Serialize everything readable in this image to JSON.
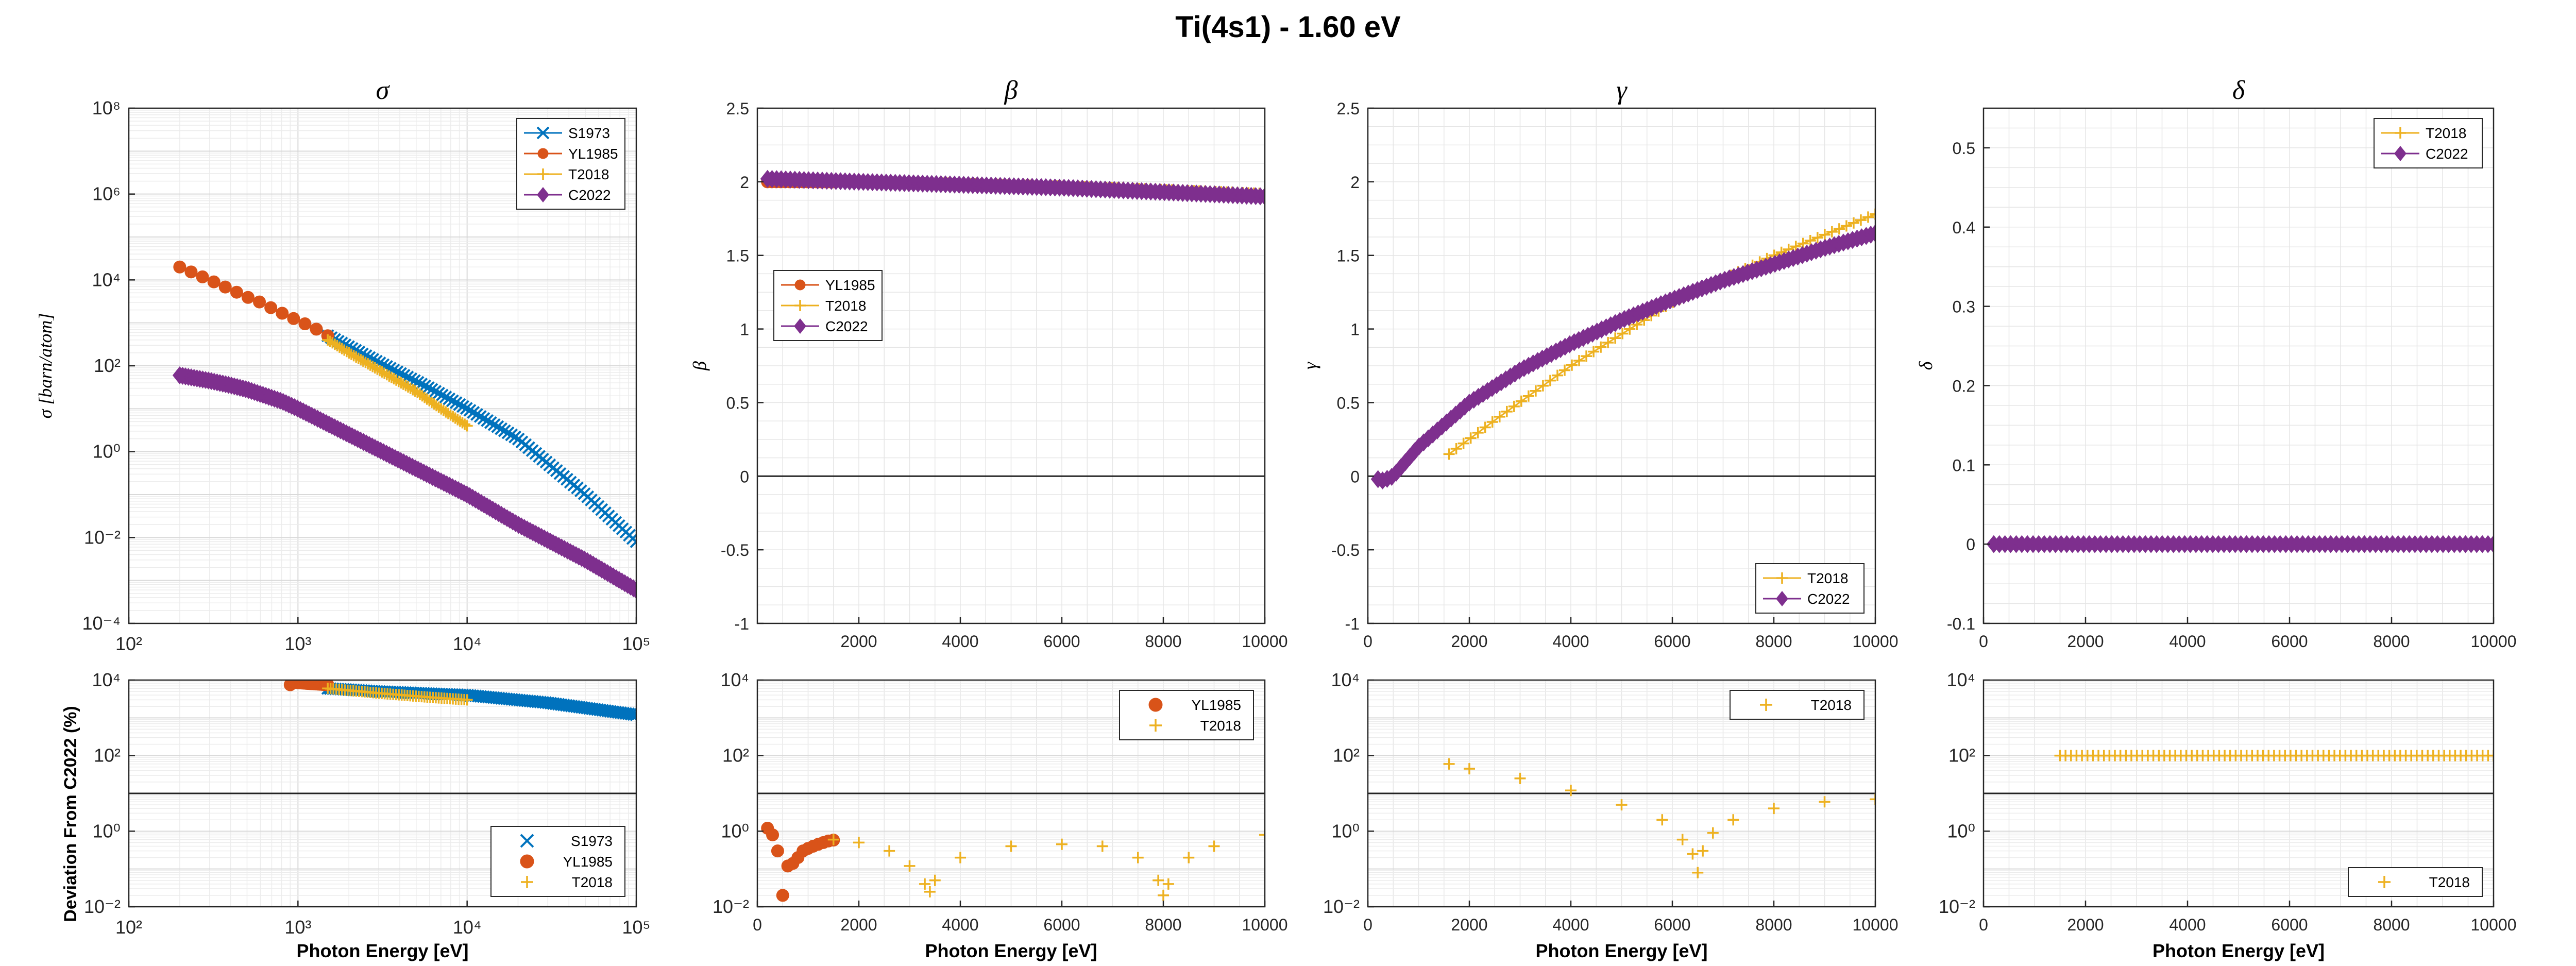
{
  "figure": {
    "title": "Ti(4s1) - 1.60 eV",
    "xlabel": "Photon Energy [eV]",
    "ylabel_bottom": "Deviation From C2022 (%)"
  },
  "colors": {
    "S1973": "#0072BD",
    "YL1985": "#D95319",
    "T2018": "#EDB120",
    "C2022": "#7E2F8E"
  },
  "chart_data": [
    {
      "id": "sigma",
      "type": "line",
      "title": "σ",
      "ylabel": "σ [barn/atom]",
      "xscale": "log",
      "yscale": "log",
      "xlim": [
        100,
        100000
      ],
      "ylim": [
        0.0001,
        100000000
      ],
      "xticks": [
        100,
        1000,
        10000,
        100000
      ],
      "xtick_labels": [
        "10²",
        "10³",
        "10⁴",
        "10⁵"
      ],
      "yticks": [
        0.0001,
        0.01,
        1,
        100,
        10000,
        1000000,
        100000000
      ],
      "ytick_labels": [
        "10⁻⁴",
        "10⁻²",
        "10⁰",
        "10²",
        "10⁴",
        "10⁶",
        "10⁸"
      ],
      "grid": true,
      "legend": "top-right",
      "series": [
        {
          "name": "S1973",
          "marker": "x",
          "x": [
            1500,
            3000,
            6000,
            10000,
            20000,
            50000,
            100000
          ],
          "y": [
            500,
            120,
            30,
            10,
            2,
            0.1,
            0.008
          ]
        },
        {
          "name": "YL1985",
          "marker": "o",
          "x": [
            200,
            300,
            400,
            500,
            600,
            700,
            800,
            900,
            1000,
            1100,
            1200,
            1300,
            1400,
            1500
          ],
          "y": [
            20000,
            10000,
            6000,
            4000,
            3000,
            2200,
            1700,
            1400,
            1100,
            950,
            800,
            700,
            600,
            500
          ]
        },
        {
          "name": "T2018",
          "marker": "+",
          "x": [
            1500,
            2000,
            3000,
            5000,
            7000,
            10000
          ],
          "y": [
            400,
            200,
            80,
            25,
            10,
            4
          ]
        },
        {
          "name": "C2022",
          "marker": "d",
          "x": [
            200,
            300,
            400,
            500,
            600,
            800,
            1000,
            2000,
            5000,
            10000,
            20000,
            50000,
            100000
          ],
          "y": [
            60,
            45,
            35,
            28,
            22,
            15,
            10,
            2.5,
            0.4,
            0.1,
            0.02,
            0.003,
            0.0006
          ]
        }
      ]
    },
    {
      "id": "beta",
      "type": "line",
      "title": "β",
      "ylabel": "β",
      "xscale": "linear",
      "yscale": "linear",
      "xlim": [
        0,
        10000
      ],
      "ylim": [
        -1,
        2.5
      ],
      "xticks": [
        2000,
        4000,
        6000,
        8000,
        10000
      ],
      "xtick_labels": [
        "2000",
        "4000",
        "6000",
        "8000",
        "10000"
      ],
      "yticks": [
        -1,
        -0.5,
        0,
        0.5,
        1,
        1.5,
        2,
        2.5
      ],
      "ytick_labels": [
        "-1",
        "-0.5",
        "0",
        "0.5",
        "1",
        "1.5",
        "2",
        "2.5"
      ],
      "zero_line": 0,
      "grid": true,
      "legend": "middle-left",
      "series": [
        {
          "name": "YL1985",
          "marker": "o",
          "x": [
            200,
            400,
            600,
            800,
            1000,
            1200,
            1500
          ],
          "y": [
            2.0,
            2.0,
            2.0,
            2.0,
            2.0,
            2.0,
            2.0
          ]
        },
        {
          "name": "T2018",
          "marker": "+",
          "x": [
            1500,
            4000,
            7000,
            10000
          ],
          "y": [
            2.0,
            1.99,
            1.96,
            1.92
          ]
        },
        {
          "name": "C2022",
          "marker": "d",
          "x": [
            200,
            2000,
            4000,
            6000,
            8000,
            10000
          ],
          "y": [
            2.02,
            2.0,
            1.98,
            1.96,
            1.93,
            1.9
          ]
        }
      ]
    },
    {
      "id": "gamma",
      "type": "line",
      "title": "γ",
      "ylabel": "γ",
      "xscale": "linear",
      "yscale": "linear",
      "xlim": [
        0,
        10000
      ],
      "ylim": [
        -1,
        2.5
      ],
      "xticks": [
        0,
        2000,
        4000,
        6000,
        8000,
        10000
      ],
      "xtick_labels": [
        "0",
        "2000",
        "4000",
        "6000",
        "8000",
        "10000"
      ],
      "yticks": [
        -1,
        -0.5,
        0,
        0.5,
        1,
        1.5,
        2,
        2.5
      ],
      "ytick_labels": [
        "-1",
        "-0.5",
        "0",
        "0.5",
        "1",
        "1.5",
        "2",
        "2.5"
      ],
      "zero_line": 0,
      "grid": true,
      "legend": "bottom-right",
      "series": [
        {
          "name": "T2018",
          "marker": "+",
          "x": [
            1600,
            2500,
            4000,
            6000,
            8000,
            10000
          ],
          "y": [
            0.15,
            0.38,
            0.75,
            1.18,
            1.5,
            1.78
          ]
        },
        {
          "name": "C2022",
          "marker": "d",
          "x": [
            200,
            300,
            500,
            1000,
            2000,
            3000,
            4000,
            5000,
            6000,
            7000,
            8000,
            9000,
            10000
          ],
          "y": [
            -0.02,
            -0.03,
            0.0,
            0.2,
            0.5,
            0.72,
            0.9,
            1.06,
            1.2,
            1.33,
            1.44,
            1.55,
            1.65
          ]
        }
      ]
    },
    {
      "id": "delta",
      "type": "line",
      "title": "δ",
      "ylabel": "δ",
      "xscale": "linear",
      "yscale": "linear",
      "xlim": [
        0,
        10000
      ],
      "ylim": [
        -0.1,
        0.55
      ],
      "xticks": [
        0,
        2000,
        4000,
        6000,
        8000,
        10000
      ],
      "xtick_labels": [
        "0",
        "2000",
        "4000",
        "6000",
        "8000",
        "10000"
      ],
      "yticks": [
        -0.1,
        0,
        0.1,
        0.2,
        0.3,
        0.4,
        0.5
      ],
      "ytick_labels": [
        "-0.1",
        "0",
        "0.1",
        "0.2",
        "0.3",
        "0.4",
        "0.5"
      ],
      "grid": true,
      "legend": "top-right",
      "series": [
        {
          "name": "T2018",
          "marker": "+",
          "x": [
            1500,
            10000
          ],
          "y": [
            0,
            0
          ]
        },
        {
          "name": "C2022",
          "marker": "d",
          "x": [
            200,
            10000
          ],
          "y": [
            0,
            0
          ]
        }
      ]
    },
    {
      "id": "dev-sigma",
      "type": "scatter",
      "xscale": "log",
      "yscale": "log",
      "xlim": [
        100,
        100000
      ],
      "ylim": [
        0.01,
        10000
      ],
      "xticks": [
        100,
        1000,
        10000,
        100000
      ],
      "xtick_labels": [
        "10²",
        "10³",
        "10⁴",
        "10⁵"
      ],
      "yticks": [
        0.01,
        1,
        100,
        10000
      ],
      "ytick_labels": [
        "10⁻²",
        "10⁰",
        "10²",
        "10⁴"
      ],
      "ref_line": 10,
      "grid": true,
      "legend": "bottom-right",
      "series": [
        {
          "name": "S1973",
          "marker": "x",
          "x": [
            1500,
            3000,
            10000,
            30000,
            100000
          ],
          "y": [
            6000,
            5000,
            4000,
            2500,
            1200
          ]
        },
        {
          "name": "YL1985",
          "marker": "o",
          "x": [
            900,
            1000,
            1200,
            1500
          ],
          "y": [
            9000,
            8500,
            8000,
            7500
          ]
        },
        {
          "name": "T2018",
          "marker": "+",
          "x": [
            1500,
            3000,
            6000,
            10000
          ],
          "y": [
            6000,
            4500,
            3500,
            3000
          ]
        }
      ]
    },
    {
      "id": "dev-beta",
      "type": "scatter",
      "xscale": "linear",
      "yscale": "log",
      "xlim": [
        0,
        10000
      ],
      "ylim": [
        0.01,
        10000
      ],
      "xticks": [
        0,
        2000,
        4000,
        6000,
        8000,
        10000
      ],
      "xtick_labels": [
        "0",
        "2000",
        "4000",
        "6000",
        "8000",
        "10000"
      ],
      "yticks": [
        0.01,
        1,
        100,
        10000
      ],
      "ytick_labels": [
        "10⁻²",
        "10⁰",
        "10²",
        "10⁴"
      ],
      "ref_line": 10,
      "grid": true,
      "legend": "top-right",
      "series": [
        {
          "name": "YL1985",
          "marker": "o",
          "x": [
            200,
            300,
            400,
            500,
            600,
            700,
            800,
            900,
            1000,
            1100,
            1200,
            1300,
            1400,
            1500
          ],
          "y": [
            1.2,
            0.8,
            0.3,
            0.02,
            0.12,
            0.14,
            0.2,
            0.3,
            0.35,
            0.4,
            0.45,
            0.5,
            0.55,
            0.58
          ]
        },
        {
          "name": "T2018",
          "marker": "+",
          "x": [
            1500,
            2000,
            2600,
            3000,
            3300,
            3400,
            3500,
            4000,
            5000,
            6000,
            6800,
            7500,
            7900,
            8000,
            8100,
            8500,
            9000,
            10000
          ],
          "y": [
            0.6,
            0.5,
            0.3,
            0.12,
            0.04,
            0.025,
            0.05,
            0.2,
            0.4,
            0.45,
            0.4,
            0.2,
            0.05,
            0.02,
            0.04,
            0.2,
            0.4,
            0.8
          ]
        }
      ]
    },
    {
      "id": "dev-gamma",
      "type": "scatter",
      "xscale": "linear",
      "yscale": "log",
      "xlim": [
        0,
        10000
      ],
      "ylim": [
        0.01,
        10000
      ],
      "xticks": [
        0,
        2000,
        4000,
        6000,
        8000,
        10000
      ],
      "xtick_labels": [
        "0",
        "2000",
        "4000",
        "6000",
        "8000",
        "10000"
      ],
      "yticks": [
        0.01,
        1,
        100,
        10000
      ],
      "ytick_labels": [
        "10⁻²",
        "10⁰",
        "10²",
        "10⁴"
      ],
      "ref_line": 10,
      "grid": true,
      "legend": "top-right",
      "series": [
        {
          "name": "T2018",
          "marker": "+",
          "x": [
            1600,
            2000,
            3000,
            4000,
            5000,
            5800,
            6200,
            6400,
            6500,
            6600,
            6800,
            7200,
            8000,
            9000,
            10000
          ],
          "y": [
            60,
            45,
            25,
            12,
            5,
            2,
            0.6,
            0.25,
            0.08,
            0.3,
            0.9,
            2,
            4,
            6,
            7
          ]
        }
      ]
    },
    {
      "id": "dev-delta",
      "type": "scatter",
      "xscale": "linear",
      "yscale": "log",
      "xlim": [
        0,
        10000
      ],
      "ylim": [
        0.01,
        10000
      ],
      "xticks": [
        0,
        2000,
        4000,
        6000,
        8000,
        10000
      ],
      "xtick_labels": [
        "0",
        "2000",
        "4000",
        "6000",
        "8000",
        "10000"
      ],
      "yticks": [
        0.01,
        1,
        100,
        10000
      ],
      "ytick_labels": [
        "10⁻²",
        "10⁰",
        "10²",
        "10⁴"
      ],
      "ref_line": 10,
      "grid": true,
      "legend": "bottom-right",
      "series": [
        {
          "name": "T2018",
          "marker": "+",
          "x": [
            1500,
            10000
          ],
          "y": [
            100,
            100
          ]
        }
      ]
    }
  ]
}
